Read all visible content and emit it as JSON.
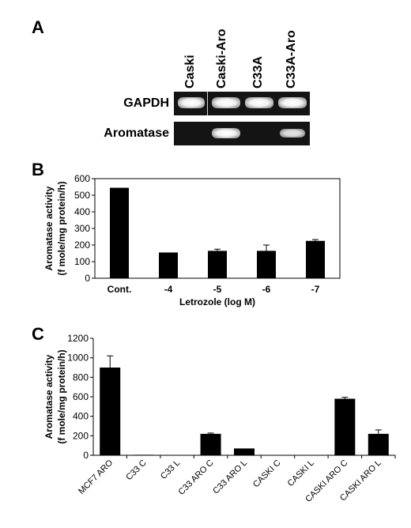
{
  "panel_a": {
    "letter": "A",
    "lanes": [
      "Caski",
      "Caski-Aro",
      "C33A",
      "C33A-Aro"
    ],
    "rows": [
      {
        "label": "GAPDH",
        "bands": [
          1,
          1,
          1,
          1
        ]
      },
      {
        "label": "Aromatase",
        "bands": [
          0,
          1,
          0,
          0.85
        ]
      }
    ]
  },
  "panel_b": {
    "letter": "B"
  },
  "panel_c": {
    "letter": "C"
  },
  "chart_data": [
    {
      "type": "bar",
      "panel": "B",
      "categories": [
        "Cont.",
        "-4",
        "-5",
        "-6",
        "-7"
      ],
      "values": [
        545,
        155,
        165,
        165,
        225
      ],
      "errors": [
        0,
        0,
        10,
        35,
        8
      ],
      "xlabel": "Letrozole (log M)",
      "ylabel_lines": [
        "Aromatase activity",
        "(f mole/mg protein/h)"
      ],
      "ylim": [
        0,
        600
      ],
      "yticks": [
        "0",
        "100",
        "200",
        "300",
        "400",
        "500",
        "600"
      ],
      "color": "#000000",
      "grid": false
    },
    {
      "type": "bar",
      "panel": "C",
      "categories": [
        "MCF7 ARO",
        "C33 C",
        "C33 L",
        "C33 ARO C",
        "C33 ARO L",
        "CASKI C",
        "CASKI L",
        "CASKI ARO C",
        "CASKI ARO L"
      ],
      "values": [
        900,
        5,
        3,
        220,
        70,
        4,
        3,
        580,
        220
      ],
      "errors": [
        120,
        0,
        0,
        8,
        0,
        0,
        0,
        15,
        40
      ],
      "xlabel": "",
      "ylabel_lines": [
        "Aromatase activity",
        "(f mole/mg protein/h)"
      ],
      "ylim": [
        0,
        1200
      ],
      "yticks": [
        "0",
        "200",
        "400",
        "600",
        "800",
        "1000",
        "1200"
      ],
      "color": "#000000",
      "grid": false
    }
  ]
}
